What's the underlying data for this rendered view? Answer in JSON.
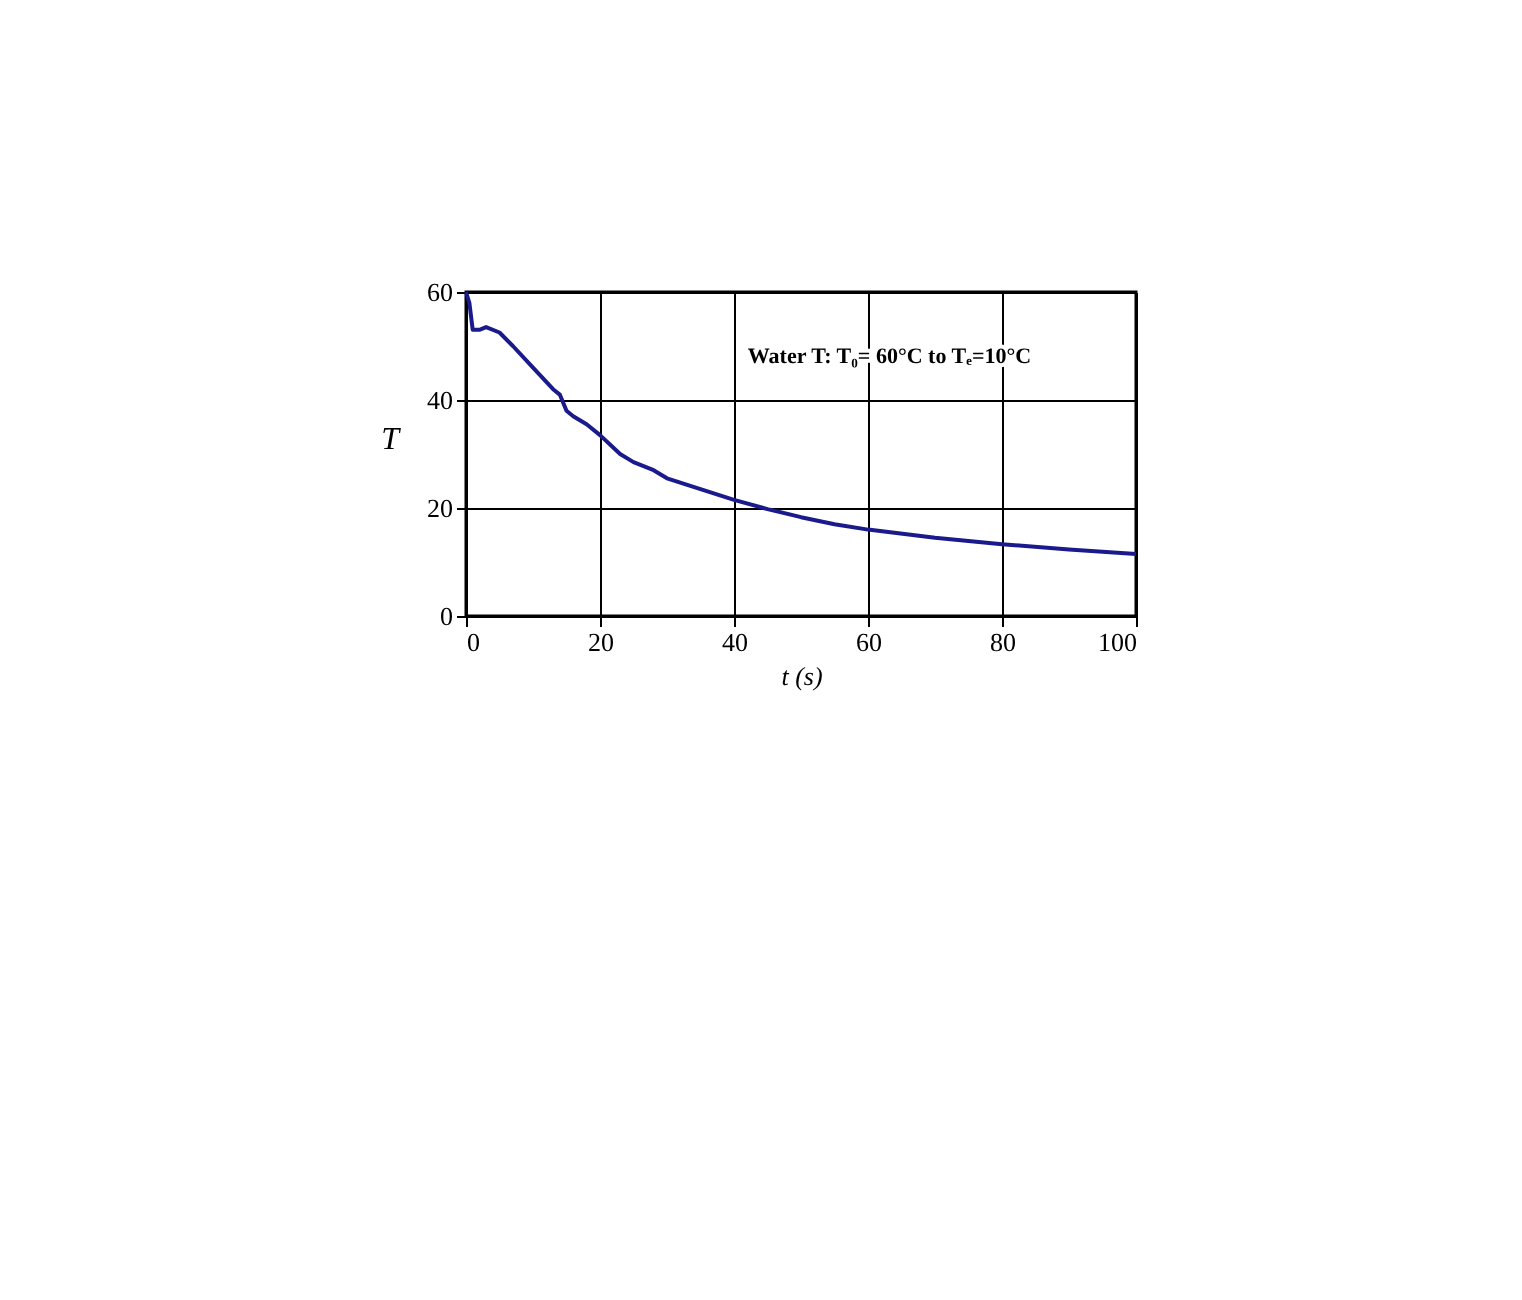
{
  "chart_data": {
    "type": "line",
    "xlabel": "t (s)",
    "ylabel": "T",
    "annotations": [
      "Water T: T₀= 60°C to Tₑ=10°C"
    ],
    "series": [
      {
        "color": "#1a1a8c",
        "x": [
          0,
          0.5,
          1,
          2,
          3,
          5,
          7,
          10,
          13,
          14,
          15,
          16,
          18,
          20,
          23,
          25,
          28,
          30,
          35,
          40,
          45,
          50,
          55,
          60,
          70,
          80,
          90,
          100
        ],
        "values": [
          60,
          58,
          53,
          53,
          53.5,
          52.5,
          50,
          46,
          42,
          41,
          38,
          37,
          35.5,
          33.5,
          30,
          28.5,
          27,
          25.5,
          23.5,
          21.5,
          19.8,
          18.3,
          17,
          16,
          14.5,
          13.3,
          12.3,
          11.5
        ]
      }
    ],
    "xlim": [
      0,
      100
    ],
    "ylim": [
      0,
      60
    ],
    "xticks": [
      0,
      20,
      40,
      60,
      80,
      100
    ],
    "yticks": [
      0,
      20,
      40,
      60
    ],
    "grid": true
  }
}
